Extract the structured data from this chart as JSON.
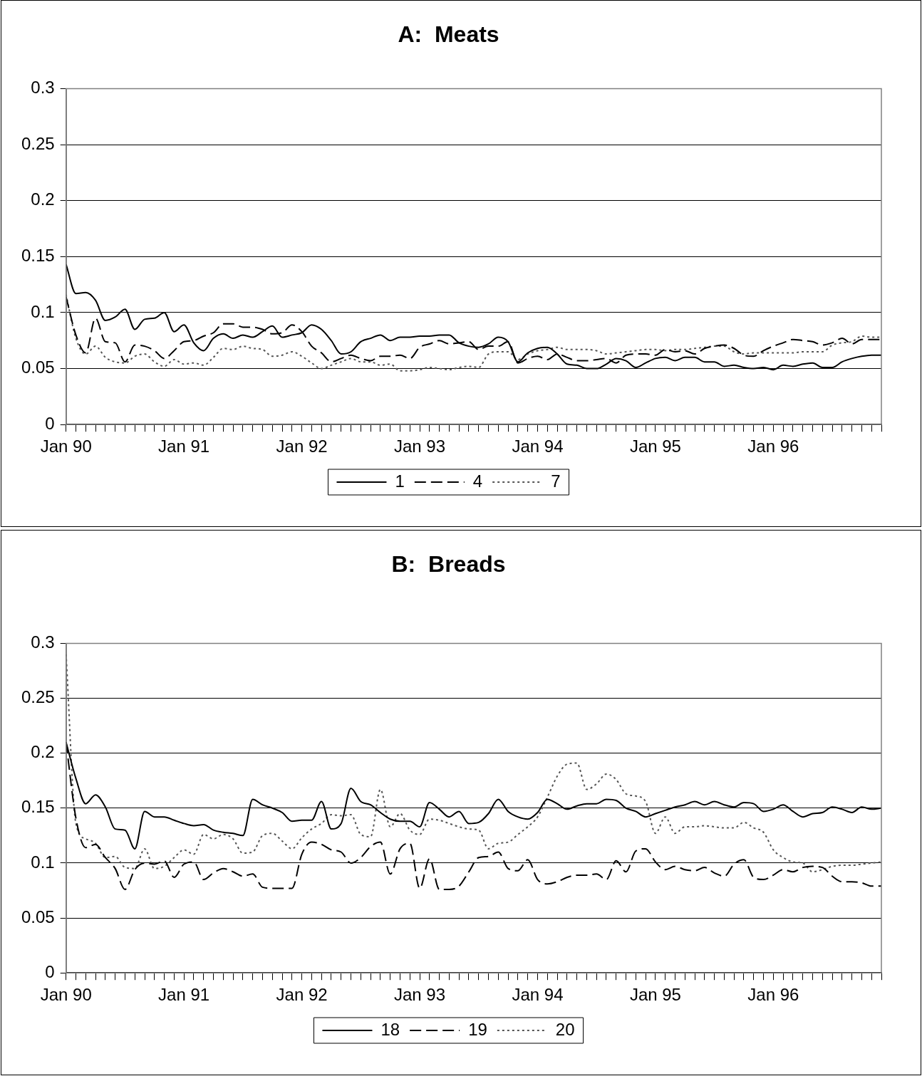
{
  "chart_data": [
    {
      "type": "line",
      "title": "A:  Meats",
      "categories": [
        "Jan 90",
        null,
        null,
        null,
        null,
        null,
        null,
        null,
        null,
        null,
        null,
        null,
        "Jan 91",
        null,
        null,
        null,
        null,
        null,
        null,
        null,
        null,
        null,
        null,
        null,
        "Jan 92",
        null,
        null,
        null,
        null,
        null,
        null,
        null,
        null,
        null,
        null,
        null,
        "Jan 93",
        null,
        null,
        null,
        null,
        null,
        null,
        null,
        null,
        null,
        null,
        null,
        "Jan 94",
        null,
        null,
        null,
        null,
        null,
        null,
        null,
        null,
        null,
        null,
        null,
        "Jan 95",
        null,
        null,
        null,
        null,
        null,
        null,
        null,
        null,
        null,
        null,
        null,
        "Jan 96",
        null,
        null,
        null,
        null,
        null,
        null,
        null,
        null,
        null,
        null,
        null
      ],
      "series": [
        {
          "name": "1",
          "color": "#000000",
          "line_style": "solid",
          "values": [
            0.143,
            0.117,
            0.118,
            0.111,
            0.093,
            0.096,
            0.103,
            0.085,
            0.094,
            0.095,
            0.1,
            0.083,
            0.089,
            0.073,
            0.066,
            0.077,
            0.081,
            0.077,
            0.08,
            0.078,
            0.083,
            0.088,
            0.078,
            0.08,
            0.082,
            0.089,
            0.085,
            0.075,
            0.063,
            0.065,
            0.074,
            0.077,
            0.08,
            0.075,
            0.078,
            0.078,
            0.079,
            0.079,
            0.08,
            0.08,
            0.073,
            0.07,
            0.069,
            0.072,
            0.078,
            0.074,
            0.056,
            0.064,
            0.068,
            0.069,
            0.063,
            0.054,
            0.053,
            0.05,
            0.05,
            0.054,
            0.059,
            0.057,
            0.051,
            0.055,
            0.059,
            0.06,
            0.057,
            0.06,
            0.06,
            0.056,
            0.056,
            0.052,
            0.053,
            0.051,
            0.05,
            0.051,
            0.049,
            0.053,
            0.052,
            0.054,
            0.055,
            0.051,
            0.051,
            0.056,
            0.059,
            0.061,
            0.062,
            0.062
          ]
        },
        {
          "name": "4",
          "color": "#000000",
          "line_style": "dashed",
          "values": [
            0.114,
            0.08,
            0.064,
            0.095,
            0.074,
            0.073,
            0.056,
            0.071,
            0.07,
            0.066,
            0.059,
            0.066,
            0.074,
            0.075,
            0.079,
            0.082,
            0.09,
            0.09,
            0.087,
            0.087,
            0.085,
            0.081,
            0.082,
            0.089,
            0.083,
            0.07,
            0.064,
            0.056,
            0.059,
            0.062,
            0.059,
            0.057,
            0.061,
            0.061,
            0.062,
            0.059,
            0.069,
            0.072,
            0.075,
            0.072,
            0.073,
            0.074,
            0.067,
            0.07,
            0.07,
            0.074,
            0.055,
            0.059,
            0.061,
            0.058,
            0.063,
            0.06,
            0.057,
            0.057,
            0.058,
            0.059,
            0.055,
            0.062,
            0.063,
            0.063,
            0.062,
            0.067,
            0.065,
            0.066,
            0.063,
            0.068,
            0.07,
            0.071,
            0.068,
            0.062,
            0.061,
            0.066,
            0.07,
            0.073,
            0.076,
            0.075,
            0.074,
            0.071,
            0.073,
            0.077,
            0.072,
            0.076,
            0.076,
            0.076
          ]
        },
        {
          "name": "7",
          "color": "#555555",
          "line_style": "dotted",
          "values": [
            0.116,
            0.077,
            0.063,
            0.07,
            0.06,
            0.056,
            0.055,
            0.061,
            0.063,
            0.056,
            0.052,
            0.058,
            0.054,
            0.055,
            0.053,
            0.06,
            0.068,
            0.067,
            0.07,
            0.068,
            0.067,
            0.061,
            0.062,
            0.065,
            0.061,
            0.055,
            0.05,
            0.053,
            0.056,
            0.059,
            0.056,
            0.056,
            0.053,
            0.054,
            0.048,
            0.048,
            0.049,
            0.051,
            0.05,
            0.049,
            0.051,
            0.052,
            0.051,
            0.063,
            0.065,
            0.065,
            0.058,
            0.063,
            0.066,
            0.067,
            0.069,
            0.067,
            0.067,
            0.067,
            0.066,
            0.063,
            0.064,
            0.065,
            0.066,
            0.067,
            0.067,
            0.066,
            0.067,
            0.067,
            0.068,
            0.069,
            0.07,
            0.07,
            0.065,
            0.063,
            0.064,
            0.064,
            0.064,
            0.064,
            0.064,
            0.065,
            0.065,
            0.065,
            0.071,
            0.073,
            0.074,
            0.079,
            0.078,
            0.078
          ]
        }
      ],
      "ylim": [
        0,
        0.3
      ],
      "yticks": [
        0,
        0.05,
        0.1,
        0.15,
        0.2,
        0.25,
        0.3
      ],
      "grid": "y",
      "legend": "bottom"
    },
    {
      "type": "line",
      "title": "B:  Breads",
      "categories": [
        "Jan 90",
        null,
        null,
        null,
        null,
        null,
        null,
        null,
        null,
        null,
        null,
        null,
        "Jan 91",
        null,
        null,
        null,
        null,
        null,
        null,
        null,
        null,
        null,
        null,
        null,
        "Jan 92",
        null,
        null,
        null,
        null,
        null,
        null,
        null,
        null,
        null,
        null,
        null,
        "Jan 93",
        null,
        null,
        null,
        null,
        null,
        null,
        null,
        null,
        null,
        null,
        null,
        "Jan 94",
        null,
        null,
        null,
        null,
        null,
        null,
        null,
        null,
        null,
        null,
        null,
        "Jan 95",
        null,
        null,
        null,
        null,
        null,
        null,
        null,
        null,
        null,
        null,
        null,
        "Jan 96",
        null,
        null,
        null,
        null,
        null,
        null,
        null,
        null,
        null,
        null,
        null
      ],
      "series": [
        {
          "name": "18",
          "color": "#000000",
          "line_style": "solid",
          "values": [
            0.21,
            0.177,
            0.154,
            0.162,
            0.151,
            0.131,
            0.13,
            0.113,
            0.147,
            0.142,
            0.142,
            0.139,
            0.136,
            0.134,
            0.135,
            0.13,
            0.128,
            0.127,
            0.125,
            0.158,
            0.153,
            0.15,
            0.146,
            0.138,
            0.139,
            0.139,
            0.156,
            0.131,
            0.136,
            0.168,
            0.156,
            0.153,
            0.146,
            0.14,
            0.138,
            0.138,
            0.133,
            0.155,
            0.149,
            0.142,
            0.147,
            0.136,
            0.137,
            0.145,
            0.158,
            0.147,
            0.142,
            0.14,
            0.146,
            0.158,
            0.154,
            0.149,
            0.152,
            0.154,
            0.154,
            0.158,
            0.157,
            0.15,
            0.147,
            0.142,
            0.145,
            0.148,
            0.151,
            0.153,
            0.156,
            0.153,
            0.156,
            0.153,
            0.151,
            0.155,
            0.154,
            0.147,
            0.149,
            0.153,
            0.147,
            0.142,
            0.145,
            0.146,
            0.151,
            0.149,
            0.146,
            0.151,
            0.149,
            0.15
          ]
        },
        {
          "name": "19",
          "color": "#000000",
          "line_style": "dashed",
          "values": [
            0.21,
            0.141,
            0.114,
            0.117,
            0.105,
            0.095,
            0.076,
            0.094,
            0.1,
            0.099,
            0.102,
            0.087,
            0.099,
            0.101,
            0.085,
            0.091,
            0.095,
            0.092,
            0.088,
            0.09,
            0.078,
            0.077,
            0.077,
            0.077,
            0.108,
            0.119,
            0.117,
            0.112,
            0.11,
            0.1,
            0.105,
            0.115,
            0.119,
            0.09,
            0.113,
            0.118,
            0.077,
            0.104,
            0.076,
            0.076,
            0.079,
            0.092,
            0.105,
            0.106,
            0.11,
            0.095,
            0.093,
            0.103,
            0.085,
            0.081,
            0.083,
            0.087,
            0.089,
            0.089,
            0.09,
            0.085,
            0.102,
            0.092,
            0.111,
            0.113,
            0.101,
            0.094,
            0.097,
            0.094,
            0.093,
            0.096,
            0.091,
            0.088,
            0.099,
            0.103,
            0.087,
            0.085,
            0.089,
            0.094,
            0.092,
            0.096,
            0.097,
            0.096,
            0.088,
            0.083,
            0.083,
            0.082,
            0.079,
            0.079
          ]
        },
        {
          "name": "20",
          "color": "#555555",
          "line_style": "dotted",
          "values": [
            0.29,
            0.136,
            0.122,
            0.118,
            0.105,
            0.106,
            0.096,
            0.095,
            0.113,
            0.095,
            0.097,
            0.105,
            0.112,
            0.108,
            0.126,
            0.122,
            0.126,
            0.122,
            0.109,
            0.11,
            0.125,
            0.127,
            0.12,
            0.113,
            0.123,
            0.131,
            0.136,
            0.144,
            0.143,
            0.144,
            0.126,
            0.124,
            0.167,
            0.133,
            0.145,
            0.13,
            0.126,
            0.14,
            0.139,
            0.136,
            0.133,
            0.131,
            0.13,
            0.113,
            0.118,
            0.119,
            0.126,
            0.133,
            0.142,
            0.16,
            0.179,
            0.19,
            0.191,
            0.167,
            0.172,
            0.181,
            0.176,
            0.163,
            0.161,
            0.156,
            0.127,
            0.142,
            0.127,
            0.133,
            0.133,
            0.134,
            0.133,
            0.132,
            0.132,
            0.137,
            0.132,
            0.128,
            0.112,
            0.105,
            0.101,
            0.1,
            0.092,
            0.094,
            0.097,
            0.098,
            0.098,
            0.099,
            0.1,
            0.101
          ]
        }
      ],
      "ylim": [
        0,
        0.3
      ],
      "yticks": [
        0,
        0.05,
        0.1,
        0.15,
        0.2,
        0.25,
        0.3
      ],
      "grid": "y",
      "legend": "bottom"
    }
  ]
}
